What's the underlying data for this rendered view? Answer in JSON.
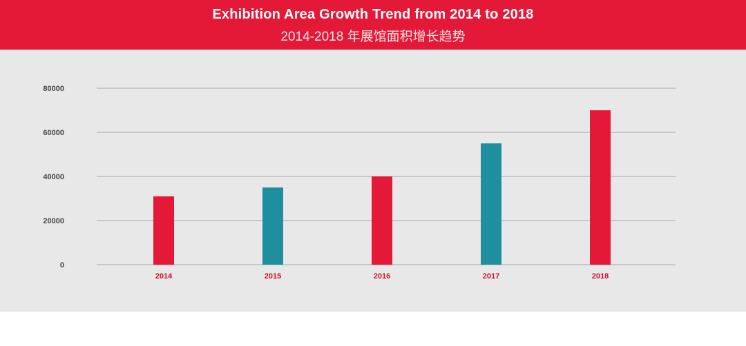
{
  "header": {
    "title": "Exhibition Area Growth Trend from 2014 to 2018",
    "subtitle": "2014-2018 年展馆面积增长趋势"
  },
  "colors": {
    "header_bg": "#e31937",
    "panel_bg": "#e8e8e8",
    "bar_red": "#e31937",
    "bar_teal": "#1f8f9e",
    "x_tick_color": "#c8102e"
  },
  "chart_data": {
    "type": "bar",
    "categories": [
      "2014",
      "2015",
      "2016",
      "2017",
      "2018"
    ],
    "values": [
      31000,
      35000,
      40000,
      55000,
      70000
    ],
    "bar_colors": [
      "#e31937",
      "#1f8f9e",
      "#e31937",
      "#1f8f9e",
      "#e31937"
    ],
    "yticks": [
      0,
      20000,
      40000,
      60000,
      80000
    ],
    "ylim": [
      0,
      80000
    ],
    "grid": true,
    "legend": "none"
  }
}
